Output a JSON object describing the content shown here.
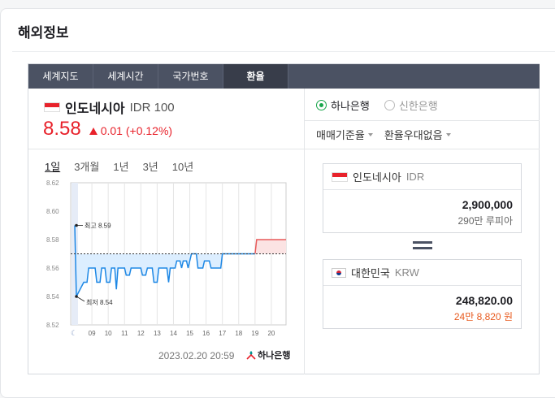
{
  "section": {
    "title": "해외정보"
  },
  "tabs": [
    {
      "label": "세계지도"
    },
    {
      "label": "세계시간"
    },
    {
      "label": "국가번호"
    },
    {
      "label": "환율"
    }
  ],
  "currency": {
    "name": "인도네시아",
    "code": "IDR 100",
    "rate": "8.58",
    "change": "0.01 (+0.12%)",
    "flag_color": "#e8222b"
  },
  "periods": [
    "1일",
    "3개월",
    "1년",
    "3년",
    "10년"
  ],
  "chart_data": {
    "type": "line",
    "y_ticks": [
      "8.62",
      "8.60",
      "8.58",
      "8.56",
      "8.54",
      "8.52"
    ],
    "x_ticks": [
      "09",
      "10",
      "11",
      "12",
      "13",
      "14",
      "15",
      "16",
      "17",
      "18",
      "19",
      "20"
    ],
    "ylim": [
      8.52,
      8.62
    ],
    "reference_line": 8.57,
    "high_label": "최고 8.59",
    "low_label": "최저 8.54",
    "night_icon": "moon-icon",
    "colors": {
      "line": "#1e88e5",
      "fill_below": "#dceeff",
      "future": "#e85a5a",
      "future_fill": "#fbe3e3"
    }
  },
  "timestamp": "2023.02.20 20:59",
  "bank": {
    "name": "하나은행",
    "color": "#009490"
  },
  "right": {
    "radios": [
      {
        "label": "하나은행",
        "selected": true
      },
      {
        "label": "신한은행",
        "selected": false
      }
    ],
    "selects": [
      {
        "label": "매매기준율"
      },
      {
        "label": "환율우대없음"
      }
    ],
    "from": {
      "name": "인도네시아",
      "code": "IDR",
      "value": "2,900,000",
      "text": "290만 루피아"
    },
    "to": {
      "name": "대한민국",
      "code": "KRW",
      "value": "248,820.00",
      "text": "24만 8,820 원"
    }
  }
}
